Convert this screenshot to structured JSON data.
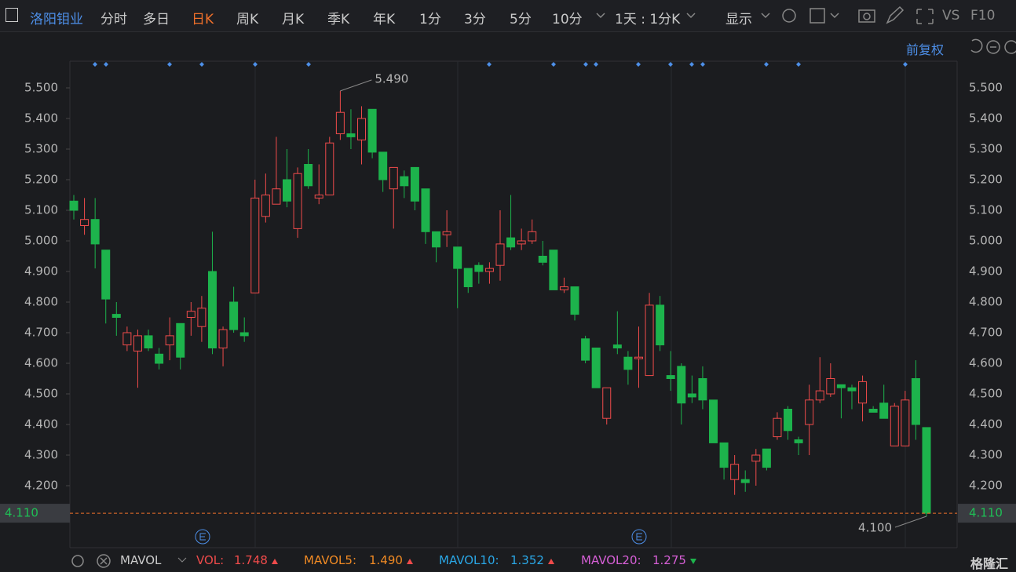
{
  "toolbar": {
    "stock": "洛阳钼业",
    "tabs": [
      "分时",
      "多日",
      "日K",
      "周K",
      "月K",
      "季K",
      "年K",
      "1分",
      "3分",
      "5分",
      "10分"
    ],
    "active": "日K",
    "period": "1天 : 1分K",
    "display": "显示",
    "vs": "VS",
    "f10": "F10"
  },
  "adjust": "前复权",
  "chart_data": {
    "type": "candlestick",
    "ylim": [
      4.03,
      5.535
    ],
    "yticks": [
      {
        "value": 4.2,
        "label": "4.200"
      },
      {
        "value": 4.3,
        "label": "4.300"
      },
      {
        "value": 4.4,
        "label": "4.400"
      },
      {
        "value": 4.5,
        "label": "4.500"
      },
      {
        "value": 4.6,
        "label": "4.600"
      },
      {
        "value": 4.7,
        "label": "4.700"
      },
      {
        "value": 4.8,
        "label": "4.800"
      },
      {
        "value": 4.9,
        "label": "4.900"
      },
      {
        "value": 5.0,
        "label": "5.000"
      },
      {
        "value": 5.1,
        "label": "5.100"
      },
      {
        "value": 5.2,
        "label": "5.200"
      },
      {
        "value": 5.3,
        "label": "5.300"
      },
      {
        "value": 5.4,
        "label": "5.400"
      },
      {
        "value": 5.5,
        "label": "5.500"
      }
    ],
    "up_color": "#f04b4b",
    "down_color": "#1db34c",
    "open": [
      5.13,
      5.05,
      5.07,
      4.97,
      4.76,
      4.66,
      4.64,
      4.69,
      4.63,
      4.66,
      4.73,
      4.75,
      4.72,
      4.9,
      4.65,
      4.8,
      4.7,
      4.83,
      5.08,
      5.12,
      5.2,
      5.04,
      5.25,
      5.14,
      5.15,
      5.35,
      5.35,
      5.33,
      5.43,
      5.29,
      5.17,
      5.21,
      5.24,
      5.17,
      5.03,
      5.02,
      4.98,
      4.91,
      4.92,
      4.9,
      4.92,
      5.01,
      4.99,
      5.0,
      4.95,
      4.97,
      4.84,
      4.85,
      4.68,
      4.65,
      4.42,
      4.66,
      4.62,
      4.615,
      4.56,
      4.79,
      4.56,
      4.59,
      4.5,
      4.55,
      4.48,
      4.34,
      4.22,
      4.22,
      4.28,
      4.32,
      4.36,
      4.45,
      4.35,
      4.4,
      4.48,
      4.5,
      4.53,
      4.52,
      4.47,
      4.45,
      4.47,
      4.33,
      4.33,
      4.55,
      4.39
    ],
    "high": [
      5.15,
      5.14,
      5.14,
      4.97,
      4.8,
      4.72,
      4.71,
      4.71,
      4.65,
      4.75,
      4.73,
      4.8,
      4.82,
      5.03,
      4.72,
      4.85,
      4.75,
      5.2,
      5.22,
      5.34,
      5.3,
      5.24,
      5.3,
      5.25,
      5.34,
      5.49,
      5.43,
      5.44,
      5.43,
      5.29,
      5.24,
      5.23,
      5.24,
      5.17,
      5.03,
      5.1,
      4.98,
      4.91,
      4.93,
      4.93,
      5.1,
      5.15,
      5.04,
      5.07,
      5.0,
      4.97,
      4.88,
      4.85,
      4.69,
      4.65,
      4.52,
      4.77,
      4.64,
      4.72,
      4.83,
      4.82,
      4.64,
      4.6,
      4.56,
      4.59,
      4.48,
      4.34,
      4.3,
      4.25,
      4.32,
      4.32,
      4.44,
      4.46,
      4.36,
      4.53,
      4.62,
      4.6,
      4.53,
      4.53,
      4.56,
      4.46,
      4.53,
      4.47,
      4.51,
      4.61,
      4.39
    ],
    "low": [
      5.07,
      5.02,
      4.91,
      4.73,
      4.69,
      4.64,
      4.52,
      4.64,
      4.58,
      4.61,
      4.58,
      4.69,
      4.67,
      4.63,
      4.59,
      4.7,
      4.67,
      4.83,
      5.06,
      5.12,
      5.11,
      5.01,
      5.17,
      5.12,
      5.15,
      5.33,
      5.3,
      5.25,
      5.27,
      5.16,
      5.04,
      5.14,
      5.1,
      4.99,
      4.93,
      4.98,
      4.78,
      4.83,
      4.86,
      4.86,
      4.87,
      4.97,
      4.97,
      4.99,
      4.92,
      4.84,
      4.83,
      4.74,
      4.6,
      4.52,
      4.4,
      4.63,
      4.53,
      4.52,
      4.56,
      4.64,
      4.51,
      4.4,
      4.47,
      4.45,
      4.34,
      4.22,
      4.17,
      4.18,
      4.2,
      4.25,
      4.35,
      4.35,
      4.3,
      4.3,
      4.47,
      4.49,
      4.42,
      4.45,
      4.41,
      4.44,
      4.42,
      4.33,
      4.33,
      4.35,
      4.1
    ],
    "close": [
      5.1,
      5.07,
      4.99,
      4.81,
      4.75,
      4.7,
      4.69,
      4.65,
      4.6,
      4.69,
      4.62,
      4.77,
      4.78,
      4.65,
      4.71,
      4.71,
      4.69,
      5.14,
      5.15,
      5.17,
      5.13,
      5.22,
      5.18,
      5.15,
      5.32,
      5.42,
      5.34,
      5.4,
      5.29,
      5.2,
      5.24,
      5.18,
      5.13,
      5.03,
      4.98,
      5.03,
      4.91,
      4.85,
      4.9,
      4.91,
      4.99,
      4.98,
      5.0,
      5.03,
      4.93,
      4.84,
      4.85,
      4.76,
      4.61,
      4.52,
      4.52,
      4.65,
      4.58,
      4.62,
      4.79,
      4.66,
      4.55,
      4.47,
      4.49,
      4.48,
      4.34,
      4.26,
      4.27,
      4.21,
      4.3,
      4.26,
      4.42,
      4.38,
      4.34,
      4.48,
      4.51,
      4.55,
      4.52,
      4.51,
      4.54,
      4.44,
      4.42,
      4.46,
      4.48,
      4.4,
      4.11
    ],
    "price_line": {
      "value": 4.11,
      "label": "4.110"
    },
    "annotations": [
      "5.490",
      "4.100"
    ]
  },
  "indicator": {
    "name": "MAVOL",
    "items": [
      {
        "label": "VOL:",
        "value": "1.748",
        "color": "#f04b4b"
      },
      {
        "label": "MAVOL5:",
        "value": "1.490",
        "color": "#f08a24"
      },
      {
        "label": "MAVOL10:",
        "value": "1.352",
        "color": "#2aa7e6"
      },
      {
        "label": "MAVOL20:",
        "value": "1.275",
        "color": "#d65fd6"
      }
    ]
  },
  "logo": "格隆汇"
}
